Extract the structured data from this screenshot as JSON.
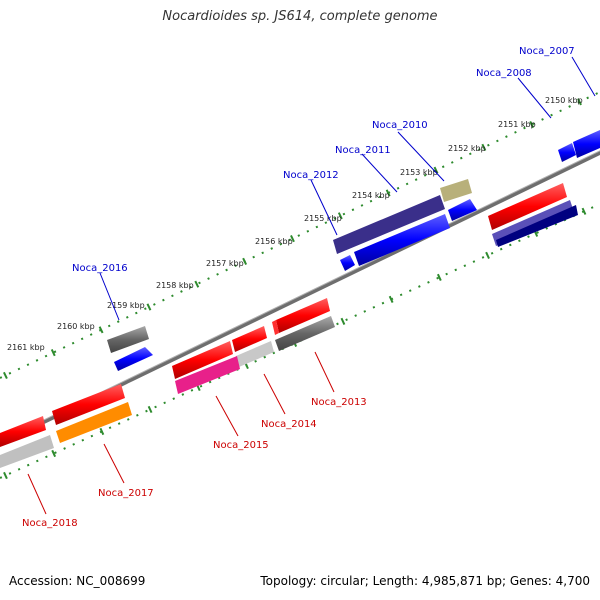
{
  "title": "Nocardioides sp. JS614, complete genome",
  "footer": {
    "accession": "Accession: NC_008699",
    "summary": "Topology: circular; Length: 4,985,871 bp; Genes: 4,700"
  },
  "colors": {
    "backbone": "#808080",
    "ticks": "#2e8b2e",
    "label_forward": "#0000cc",
    "label_reverse": "#cc0000"
  },
  "tick_labels": [
    "2150 kbp",
    "2151 kbp",
    "2152 kbp",
    "2153 kbp",
    "2154 kbp",
    "2155 kbp",
    "2156 kbp",
    "2157 kbp",
    "2158 kbp",
    "2159 kbp",
    "2160 kbp",
    "2161 kbp"
  ],
  "genes_forward": [
    "Noca_2007",
    "Noca_2008",
    "Noca_2010",
    "Noca_2011",
    "Noca_2012",
    "Noca_2016"
  ],
  "genes_reverse": [
    "Noca_2013",
    "Noca_2014",
    "Noca_2015",
    "Noca_2017",
    "Noca_2018"
  ]
}
